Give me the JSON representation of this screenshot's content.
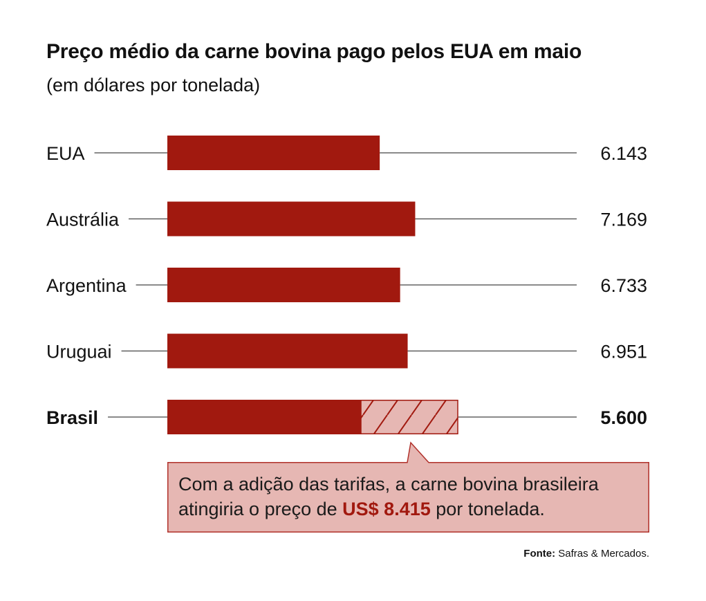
{
  "title": "Preço médio da carne bovina pago pelos EUA em maio",
  "subtitle": "(em dólares por tonelada)",
  "colors": {
    "bar": "#a1190f",
    "hatch_fill": "#e6b7b3",
    "callout_fill": "#e6b7b3",
    "callout_border": "#b0302a",
    "line": "#444444"
  },
  "chart_data": {
    "type": "bar",
    "orientation": "horizontal",
    "categories": [
      "EUA",
      "Austrália",
      "Argentina",
      "Uruguai",
      "Brasil"
    ],
    "values": [
      6143,
      7169,
      6733,
      6951,
      5600
    ],
    "value_labels": [
      "6.143",
      "7.169",
      "6.733",
      "6.951",
      "5.600"
    ],
    "highlight": "Brasil",
    "extension": {
      "category": "Brasil",
      "value": 8415,
      "style": "hatched"
    },
    "title": "Preço médio da carne bovina pago pelos EUA em maio",
    "subtitle": "(em dólares por tonelada)",
    "grid": false,
    "legend": "none"
  },
  "callout": {
    "text_before": "Com a adição das tarifas, a carne bovina brasileira atingiria o preço de ",
    "highlight": "US$ 8.415",
    "text_after": " por tonelada."
  },
  "source": {
    "label": "Fonte:",
    "text": "Safras & Mercados."
  }
}
